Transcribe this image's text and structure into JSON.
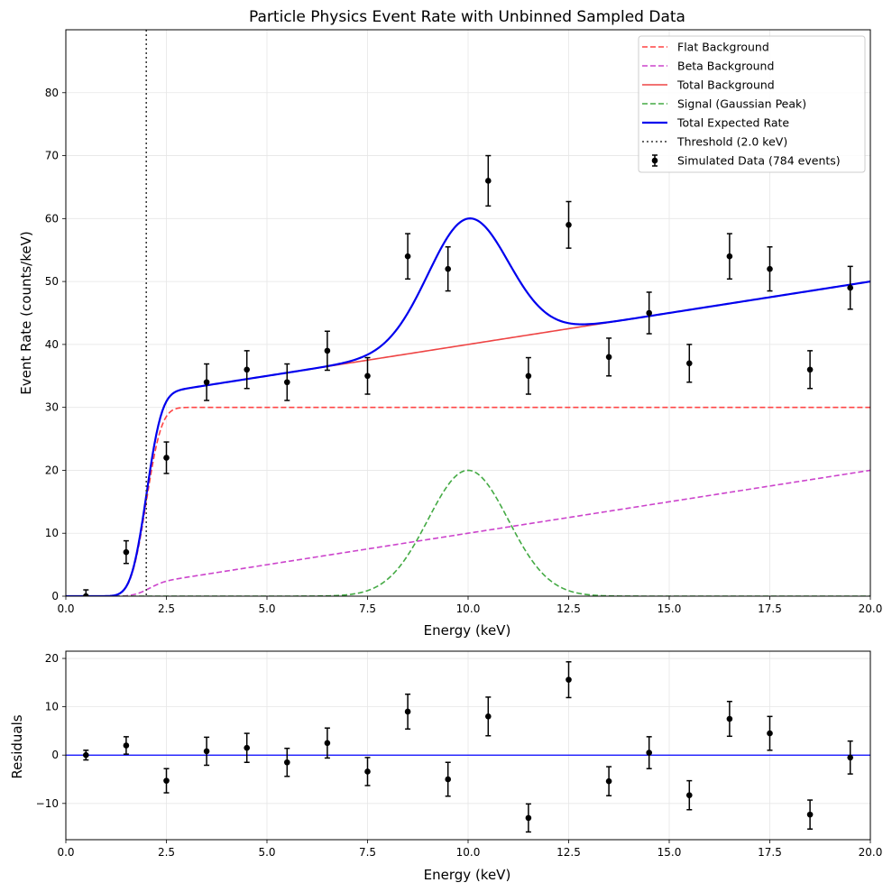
{
  "chart_data": [
    {
      "type": "line",
      "title": "Particle Physics Event Rate with Unbinned Sampled Data",
      "xlabel": "Energy (keV)",
      "ylabel": "Event Rate (counts/keV)",
      "xlim": [
        0,
        20
      ],
      "ylim": [
        0,
        90
      ],
      "xticks": [
        "0.0",
        "2.5",
        "5.0",
        "7.5",
        "10.0",
        "12.5",
        "15.0",
        "17.5",
        "20.0"
      ],
      "yticks": [
        "0",
        "10",
        "20",
        "30",
        "40",
        "50",
        "60",
        "70",
        "80"
      ],
      "grid": true,
      "legend_position": "top-right",
      "model": {
        "threshold_keV": 2.0,
        "threshold_width_keV": 0.3,
        "flat_level": 30,
        "beta_slope_per_keV": 1.0,
        "signal_amplitude": 20,
        "signal_mean_keV": 10,
        "signal_sigma_keV": 1.0
      },
      "series": [
        {
          "name": "Flat Background",
          "style": "dashed",
          "color": "#ff4444"
        },
        {
          "name": "Beta Background",
          "style": "dashed",
          "color": "#cc44cc"
        },
        {
          "name": "Total Background",
          "style": "solid",
          "color": "#ee4444"
        },
        {
          "name": "Signal (Gaussian Peak)",
          "style": "dashed",
          "color": "#44aa44"
        },
        {
          "name": "Total Expected Rate",
          "style": "solid",
          "color": "#0000ee"
        },
        {
          "name": "Threshold (2.0 keV)",
          "style": "dotted",
          "color": "#333333"
        },
        {
          "name": "Simulated Data (784 events)",
          "style": "errorbar",
          "color": "#000000",
          "x": [
            0.5,
            1.5,
            2.5,
            3.5,
            4.5,
            5.5,
            6.5,
            7.5,
            8.5,
            9.5,
            10.5,
            11.5,
            12.5,
            13.5,
            14.5,
            15.5,
            16.5,
            17.5,
            18.5,
            19.5
          ],
          "y": [
            0,
            7,
            22,
            34,
            36,
            34,
            39,
            35,
            54,
            52,
            66,
            35,
            59,
            38,
            45,
            37,
            54,
            52,
            36,
            49
          ],
          "yerr": [
            1,
            1.8,
            2.5,
            2.9,
            3.0,
            2.9,
            3.1,
            2.9,
            3.6,
            3.5,
            4.0,
            2.9,
            3.7,
            3.0,
            3.3,
            3.0,
            3.6,
            3.5,
            3.0,
            3.4
          ]
        }
      ]
    },
    {
      "type": "scatter",
      "title": "",
      "xlabel": "Energy (keV)",
      "ylabel": "Residuals",
      "xlim": [
        0,
        20
      ],
      "ylim": [
        -17.5,
        21.5
      ],
      "xticks": [
        "0.0",
        "2.5",
        "5.0",
        "7.5",
        "10.0",
        "12.5",
        "15.0",
        "17.5",
        "20.0"
      ],
      "yticks": [
        "−10",
        "0",
        "10",
        "20"
      ],
      "grid": true,
      "zero_line_color": "#0000ff",
      "series": [
        {
          "style": "errorbar",
          "color": "#000000",
          "x": [
            0.5,
            1.5,
            2.5,
            3.5,
            4.5,
            5.5,
            6.5,
            7.5,
            8.5,
            9.5,
            10.5,
            11.5,
            12.5,
            13.5,
            14.5,
            15.5,
            16.5,
            17.5,
            18.5,
            19.5
          ],
          "y": [
            0,
            2,
            -5.3,
            0.8,
            1.5,
            -1.5,
            2.5,
            -3.4,
            9,
            -5,
            8,
            -13,
            15.6,
            -5.4,
            0.5,
            -8.3,
            7.5,
            4.5,
            -12.3,
            -0.5
          ],
          "yerr": [
            1,
            1.8,
            2.5,
            2.9,
            3.0,
            2.9,
            3.1,
            2.9,
            3.6,
            3.5,
            4.0,
            2.9,
            3.7,
            3.0,
            3.3,
            3.0,
            3.6,
            3.5,
            3.0,
            3.4
          ]
        }
      ]
    }
  ]
}
